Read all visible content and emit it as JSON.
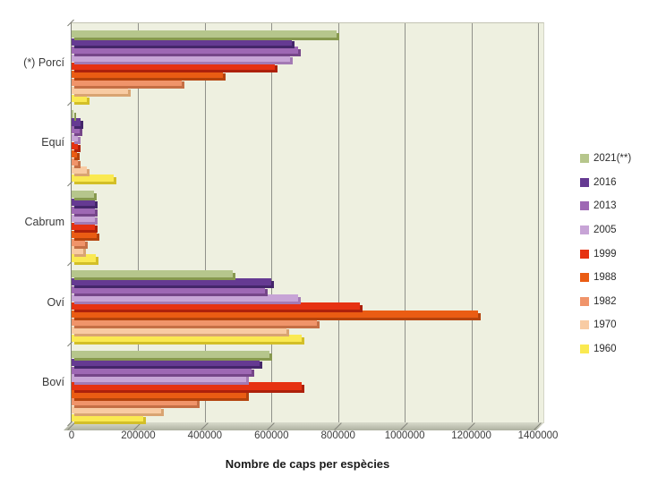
{
  "chart_data": {
    "type": "bar",
    "orientation": "horizontal-grouped-3d",
    "title": "",
    "xlabel": "Nombre de caps per espècies",
    "ylabel": "",
    "categories": [
      "(*) Porcí",
      "Equí",
      "Cabrum",
      "Oví",
      "Boví"
    ],
    "x_ticks": [
      "0",
      "200000",
      "400000",
      "600000",
      "800000",
      "1000000",
      "1200000",
      "1400000"
    ],
    "xlim": [
      0,
      1400000
    ],
    "grid": true,
    "legend_position": "right",
    "plot_bg": "#eef0e0",
    "gridline_color": "#90918a",
    "series": [
      {
        "name": "2021(**)",
        "color": "#b6c68c",
        "shadow": "#87994f",
        "values": [
          795000,
          6000,
          66000,
          485000,
          595000
        ]
      },
      {
        "name": "2016",
        "color": "#653a92",
        "shadow": "#44266a",
        "values": [
          660000,
          27000,
          70000,
          600000,
          565000
        ]
      },
      {
        "name": "2013",
        "color": "#9e68b4",
        "shadow": "#764689",
        "values": [
          680000,
          25000,
          69000,
          580000,
          540000
        ]
      },
      {
        "name": "2005",
        "color": "#c7a4d6",
        "shadow": "#a37ab4",
        "values": [
          655000,
          20000,
          71000,
          680000,
          525000
        ]
      },
      {
        "name": "1999",
        "color": "#e63212",
        "shadow": "#ad210b",
        "values": [
          610000,
          18000,
          69000,
          865000,
          690000
        ]
      },
      {
        "name": "1988",
        "color": "#ea5c13",
        "shadow": "#b4430c",
        "values": [
          455000,
          16000,
          76000,
          1220000,
          525000
        ]
      },
      {
        "name": "1982",
        "color": "#f0946a",
        "shadow": "#c56f45",
        "values": [
          330000,
          20000,
          40000,
          735000,
          375000
        ]
      },
      {
        "name": "1970",
        "color": "#f8cba3",
        "shadow": "#d9a472",
        "values": [
          170000,
          45000,
          36000,
          645000,
          270000
        ]
      },
      {
        "name": "1960",
        "color": "#fae951",
        "shadow": "#d3bf28",
        "values": [
          45000,
          125000,
          73000,
          690000,
          215000
        ]
      }
    ]
  }
}
